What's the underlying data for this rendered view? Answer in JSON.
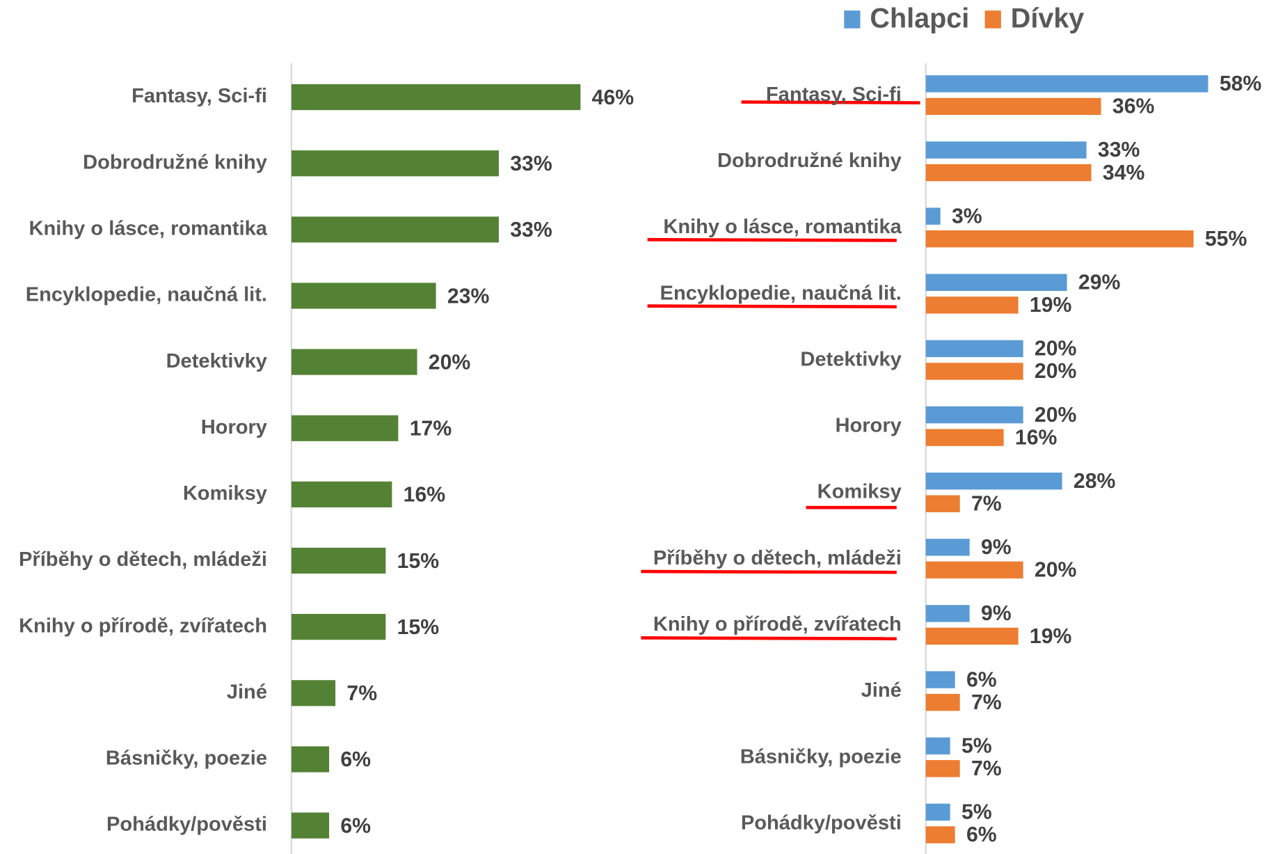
{
  "chart_data": [
    {
      "type": "bar",
      "orientation": "horizontal",
      "categories": [
        "Fantasy, Sci-fi",
        "Dobrodružné knihy",
        "Knihy o lásce, romantika",
        "Encyklopedie, naučná lit.",
        "Detektivky",
        "Horory",
        "Komiksy",
        "Příběhy o dětech, mládeži",
        "Knihy o přírodě, zvířatech",
        "Jiné",
        "Básničky, poezie",
        "Pohádky/pověsti"
      ],
      "values": [
        46,
        33,
        33,
        23,
        20,
        17,
        16,
        15,
        15,
        7,
        6,
        6
      ],
      "value_labels": [
        "46%",
        "33%",
        "33%",
        "23%",
        "20%",
        "17%",
        "16%",
        "15%",
        "15%",
        "7%",
        "6%",
        "6%"
      ],
      "color": "#548235",
      "xlim": [
        0,
        60
      ]
    },
    {
      "type": "grouped_bar",
      "orientation": "horizontal",
      "categories": [
        "Fantasy, Sci-fi",
        "Dobrodružné knihy",
        "Knihy o lásce, romantika",
        "Encyklopedie, naučná lit.",
        "Detektivky",
        "Horory",
        "Komiksy",
        "Příběhy o dětech, mládeži",
        "Knihy o přírodě, zvířatech",
        "Jiné",
        "Básničky, poezie",
        "Pohádky/pověsti"
      ],
      "series": [
        {
          "name": "Chlapci",
          "color": "#5b9bd5",
          "values": [
            58,
            33,
            3,
            29,
            20,
            20,
            28,
            9,
            9,
            6,
            5,
            5
          ],
          "value_labels": [
            "58%",
            "33%",
            "3%",
            "29%",
            "20%",
            "20%",
            "28%",
            "9%",
            "9%",
            "6%",
            "5%",
            "5%"
          ]
        },
        {
          "name": "Dívky",
          "color": "#ed7d31",
          "values": [
            36,
            34,
            55,
            19,
            20,
            16,
            7,
            20,
            19,
            7,
            7,
            6
          ],
          "value_labels": [
            "36%",
            "34%",
            "55%",
            "19%",
            "20%",
            "16%",
            "7%",
            "20%",
            "19%",
            "7%",
            "7%",
            "6%"
          ]
        }
      ],
      "xlim": [
        0,
        60
      ],
      "legend": "top-right"
    }
  ]
}
